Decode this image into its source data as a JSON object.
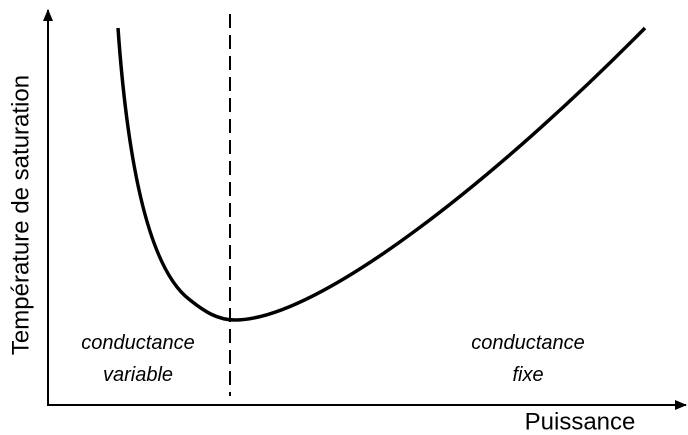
{
  "axes": {
    "y_label": "Température de saturation",
    "x_label": "Puissance"
  },
  "regions": [
    {
      "lines": [
        "conductance",
        "variable"
      ]
    },
    {
      "lines": [
        "conductance",
        "fixe"
      ]
    }
  ]
}
